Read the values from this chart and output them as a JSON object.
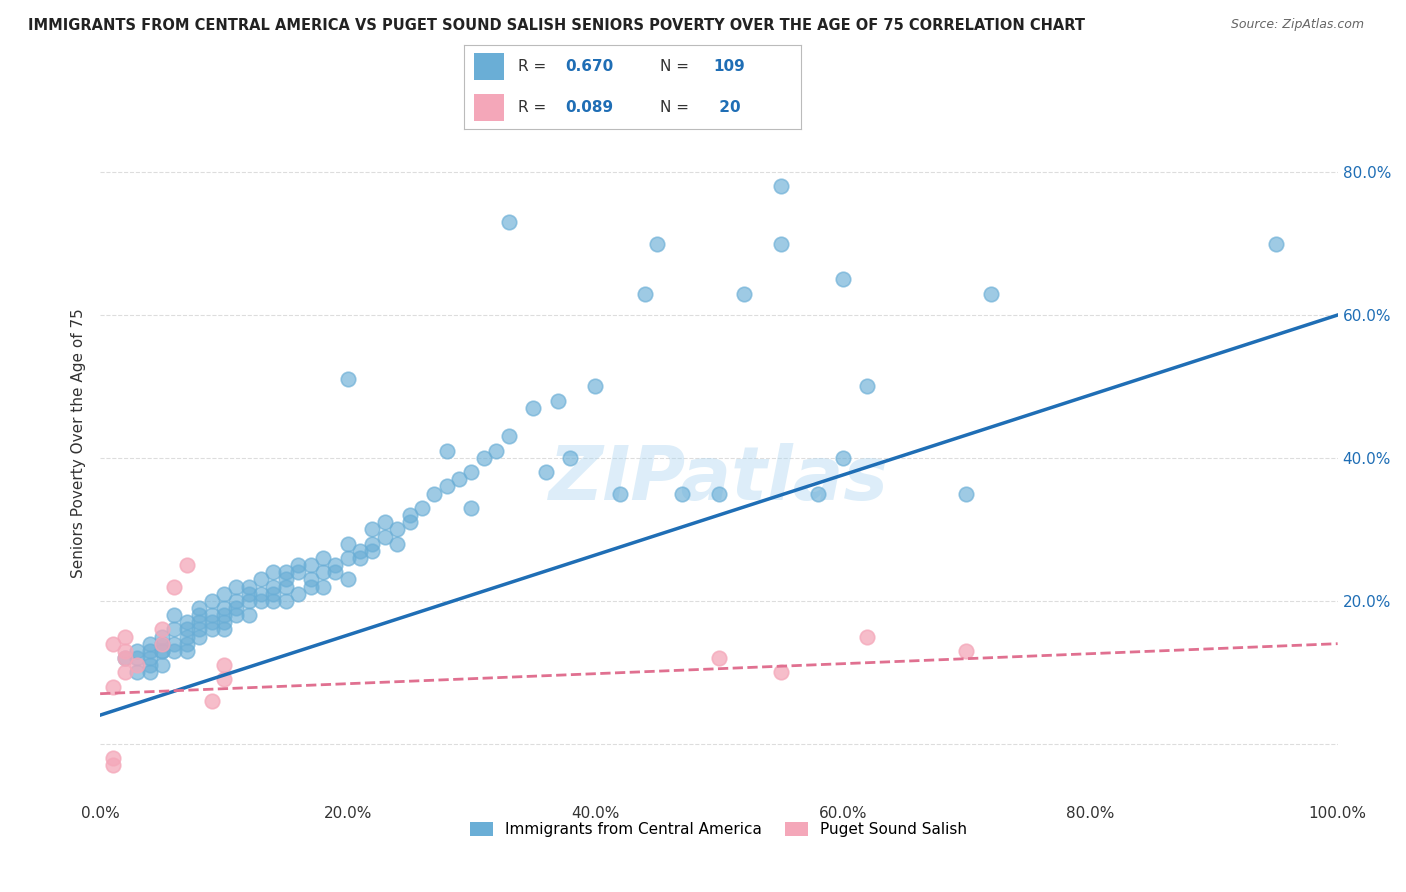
{
  "title": "IMMIGRANTS FROM CENTRAL AMERICA VS PUGET SOUND SALISH SENIORS POVERTY OVER THE AGE OF 75 CORRELATION CHART",
  "source": "Source: ZipAtlas.com",
  "ylabel": "Seniors Poverty Over the Age of 75",
  "xlim": [
    0,
    1.0
  ],
  "ylim": [
    -0.08,
    0.92
  ],
  "xticks": [
    0.0,
    0.2,
    0.4,
    0.6,
    0.8,
    1.0
  ],
  "ytick_positions": [
    0.0,
    0.2,
    0.4,
    0.6,
    0.8
  ],
  "blue_R": 0.67,
  "blue_N": 109,
  "pink_R": 0.089,
  "pink_N": 20,
  "blue_color": "#6aaed6",
  "pink_color": "#f4a7b9",
  "blue_line_color": "#1f6eb5",
  "pink_line_color": "#e07090",
  "watermark": "ZIPatlas",
  "background_color": "#ffffff",
  "grid_color": "#dddddd",
  "blue_scatter_x": [
    0.02,
    0.03,
    0.03,
    0.03,
    0.04,
    0.04,
    0.04,
    0.04,
    0.04,
    0.05,
    0.05,
    0.05,
    0.05,
    0.05,
    0.06,
    0.06,
    0.06,
    0.06,
    0.07,
    0.07,
    0.07,
    0.07,
    0.07,
    0.08,
    0.08,
    0.08,
    0.08,
    0.08,
    0.09,
    0.09,
    0.09,
    0.09,
    0.1,
    0.1,
    0.1,
    0.1,
    0.1,
    0.11,
    0.11,
    0.11,
    0.11,
    0.12,
    0.12,
    0.12,
    0.12,
    0.13,
    0.13,
    0.13,
    0.14,
    0.14,
    0.14,
    0.14,
    0.15,
    0.15,
    0.15,
    0.15,
    0.16,
    0.16,
    0.16,
    0.17,
    0.17,
    0.17,
    0.18,
    0.18,
    0.18,
    0.19,
    0.19,
    0.2,
    0.2,
    0.2,
    0.21,
    0.21,
    0.22,
    0.22,
    0.22,
    0.23,
    0.23,
    0.24,
    0.24,
    0.25,
    0.25,
    0.26,
    0.27,
    0.28,
    0.28,
    0.29,
    0.3,
    0.3,
    0.31,
    0.32,
    0.33,
    0.35,
    0.36,
    0.37,
    0.38,
    0.4,
    0.42,
    0.44,
    0.45,
    0.47,
    0.5,
    0.52,
    0.55,
    0.58,
    0.6,
    0.62,
    0.7,
    0.72,
    0.95,
    0.33,
    0.55,
    0.6,
    0.2
  ],
  "blue_scatter_y": [
    0.12,
    0.13,
    0.1,
    0.12,
    0.13,
    0.11,
    0.14,
    0.1,
    0.12,
    0.13,
    0.14,
    0.15,
    0.11,
    0.13,
    0.14,
    0.13,
    0.16,
    0.18,
    0.15,
    0.14,
    0.17,
    0.13,
    0.16,
    0.15,
    0.18,
    0.16,
    0.17,
    0.19,
    0.17,
    0.18,
    0.2,
    0.16,
    0.17,
    0.19,
    0.21,
    0.16,
    0.18,
    0.18,
    0.22,
    0.19,
    0.2,
    0.2,
    0.18,
    0.22,
    0.21,
    0.21,
    0.23,
    0.2,
    0.22,
    0.24,
    0.2,
    0.21,
    0.23,
    0.22,
    0.24,
    0.2,
    0.24,
    0.21,
    0.25,
    0.25,
    0.23,
    0.22,
    0.24,
    0.26,
    0.22,
    0.25,
    0.24,
    0.26,
    0.28,
    0.23,
    0.27,
    0.26,
    0.28,
    0.3,
    0.27,
    0.29,
    0.31,
    0.3,
    0.28,
    0.31,
    0.32,
    0.33,
    0.35,
    0.36,
    0.41,
    0.37,
    0.38,
    0.33,
    0.4,
    0.41,
    0.43,
    0.47,
    0.38,
    0.48,
    0.4,
    0.5,
    0.35,
    0.63,
    0.7,
    0.35,
    0.63,
    0.7,
    0.73,
    0.78,
    0.65,
    0.51,
    0.35,
    0.63,
    0.7,
    0.73,
    0.78,
    0.65,
    0.51
  ],
  "pink_scatter_x": [
    0.01,
    0.01,
    0.02,
    0.02,
    0.02,
    0.02,
    0.03,
    0.05,
    0.05,
    0.06,
    0.07,
    0.09,
    0.1,
    0.1,
    0.5,
    0.55,
    0.62,
    0.7,
    0.01,
    0.01
  ],
  "pink_scatter_y": [
    0.14,
    0.08,
    0.12,
    0.1,
    0.15,
    0.13,
    0.11,
    0.16,
    0.14,
    0.22,
    0.25,
    0.06,
    0.09,
    0.11,
    0.12,
    0.1,
    0.15,
    0.13,
    -0.03,
    -0.02
  ],
  "blue_line_x": [
    0.0,
    1.0
  ],
  "blue_line_y": [
    0.04,
    0.6
  ],
  "pink_line_x": [
    0.0,
    1.0
  ],
  "pink_line_y": [
    0.07,
    0.14
  ],
  "legend_labels": [
    "Immigrants from Central America",
    "Puget Sound Salish"
  ]
}
